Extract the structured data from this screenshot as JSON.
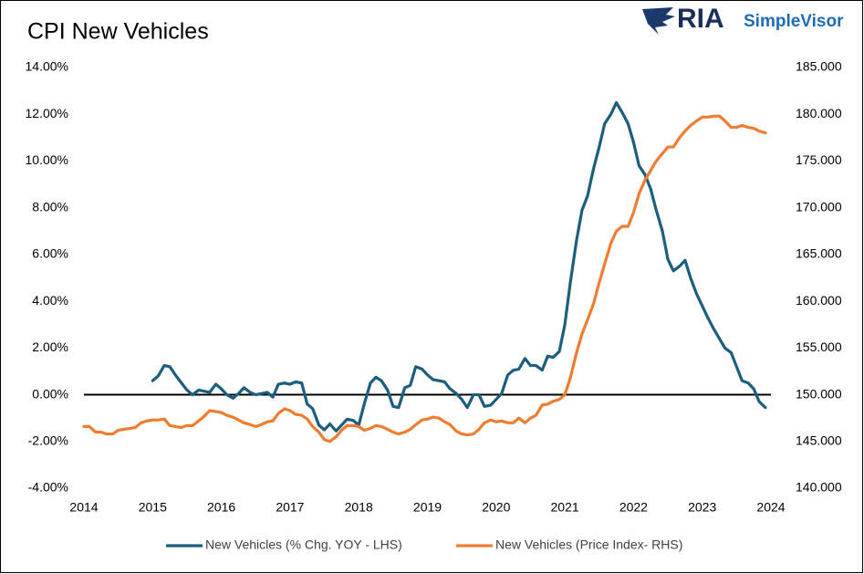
{
  "branding": {
    "name": "RIA",
    "product": "SimpleVisor"
  },
  "chart_data": {
    "type": "line",
    "title": "CPI New Vehicles",
    "xlim": [
      2014,
      2024
    ],
    "xticks": [
      2014,
      2015,
      2016,
      2017,
      2018,
      2019,
      2020,
      2021,
      2022,
      2023,
      2024
    ],
    "ylim": [
      -4,
      14
    ],
    "yticks": [
      {
        "value": -4,
        "label": "-4.00%"
      },
      {
        "value": -2,
        "label": "-2.00%"
      },
      {
        "value": 0,
        "label": "0.00%"
      },
      {
        "value": 2,
        "label": "2.00%"
      },
      {
        "value": 4,
        "label": "4.00%"
      },
      {
        "value": 6,
        "label": "6.00%"
      },
      {
        "value": 8,
        "label": "8.00%"
      },
      {
        "value": 10,
        "label": "10.00%"
      },
      {
        "value": 12,
        "label": "12.00%"
      },
      {
        "value": 14,
        "label": "14.00%"
      }
    ],
    "y2lim": [
      140,
      185
    ],
    "y2ticks": [
      {
        "value": 140,
        "label": "140.000"
      },
      {
        "value": 145,
        "label": "145.000"
      },
      {
        "value": 150,
        "label": "150.000"
      },
      {
        "value": 155,
        "label": "155.000"
      },
      {
        "value": 160,
        "label": "160.000"
      },
      {
        "value": 165,
        "label": "165.000"
      },
      {
        "value": 170,
        "label": "170.000"
      },
      {
        "value": 175,
        "label": "175.000"
      },
      {
        "value": 180,
        "label": "180.000"
      },
      {
        "value": 185,
        "label": "185.000"
      }
    ],
    "zero_line": true,
    "grid": false,
    "legend": "bottom",
    "series": [
      {
        "name": "New Vehicles (% Chg. YOY - LHS)",
        "color": "#1b5e7e",
        "axis": "y",
        "x": [
          2015.0,
          2015.08,
          2015.17,
          2015.25,
          2015.33,
          2015.42,
          2015.5,
          2015.58,
          2015.67,
          2015.75,
          2015.83,
          2015.92,
          2016.0,
          2016.08,
          2016.17,
          2016.25,
          2016.33,
          2016.42,
          2016.5,
          2016.58,
          2016.67,
          2016.75,
          2016.83,
          2016.92,
          2017.0,
          2017.08,
          2017.17,
          2017.25,
          2017.33,
          2017.42,
          2017.5,
          2017.58,
          2017.67,
          2017.75,
          2017.83,
          2017.92,
          2018.0,
          2018.08,
          2018.17,
          2018.25,
          2018.33,
          2018.42,
          2018.5,
          2018.58,
          2018.67,
          2018.75,
          2018.83,
          2018.92,
          2019.0,
          2019.08,
          2019.17,
          2019.25,
          2019.33,
          2019.42,
          2019.5,
          2019.58,
          2019.67,
          2019.75,
          2019.83,
          2019.92,
          2020.0,
          2020.08,
          2020.17,
          2020.25,
          2020.33,
          2020.42,
          2020.5,
          2020.58,
          2020.67,
          2020.75,
          2020.83,
          2020.92,
          2021.0,
          2021.08,
          2021.17,
          2021.25,
          2021.33,
          2021.42,
          2021.5,
          2021.58,
          2021.67,
          2021.75,
          2021.83,
          2021.92,
          2022.0,
          2022.08,
          2022.17,
          2022.25,
          2022.33,
          2022.42,
          2022.5,
          2022.58,
          2022.67,
          2022.75,
          2022.83,
          2022.92,
          2023.0,
          2023.08,
          2023.17,
          2023.25,
          2023.33,
          2023.42,
          2023.5,
          2023.58,
          2023.67,
          2023.75,
          2023.83,
          2023.92
        ],
        "values": [
          0.6,
          0.8,
          1.25,
          1.2,
          0.85,
          0.5,
          0.2,
          0.0,
          0.2,
          0.15,
          0.1,
          0.45,
          0.25,
          0.0,
          -0.15,
          0.05,
          0.3,
          0.1,
          0.0,
          0.05,
          0.1,
          -0.1,
          0.45,
          0.5,
          0.45,
          0.55,
          0.5,
          -0.4,
          -0.6,
          -1.3,
          -1.5,
          -1.25,
          -1.55,
          -1.3,
          -1.05,
          -1.1,
          -1.3,
          -0.4,
          0.5,
          0.75,
          0.6,
          0.2,
          -0.5,
          -0.55,
          0.3,
          0.4,
          1.2,
          1.1,
          0.85,
          0.65,
          0.6,
          0.55,
          0.25,
          0.05,
          -0.2,
          -0.55,
          0.0,
          0.0,
          -0.5,
          -0.45,
          -0.2,
          0.05,
          0.85,
          1.05,
          1.1,
          1.55,
          1.25,
          1.25,
          1.05,
          1.65,
          1.6,
          1.85,
          3.0,
          4.8,
          6.6,
          7.9,
          8.5,
          9.7,
          10.6,
          11.6,
          12.0,
          12.5,
          12.1,
          11.6,
          10.8,
          9.8,
          9.4,
          8.8,
          7.9,
          7.0,
          5.8,
          5.3,
          5.5,
          5.75,
          5.0,
          4.3,
          3.8,
          3.3,
          2.8,
          2.4,
          2.0,
          1.8,
          1.2,
          0.6,
          0.5,
          0.25,
          -0.3,
          -0.55
        ]
      },
      {
        "name": "New Vehicles (Price Index- RHS)",
        "color": "#ed7d31",
        "axis": "y2",
        "x": [
          2014.0,
          2014.08,
          2014.17,
          2014.25,
          2014.33,
          2014.42,
          2014.5,
          2014.58,
          2014.67,
          2014.75,
          2014.83,
          2014.92,
          2015.0,
          2015.08,
          2015.17,
          2015.25,
          2015.33,
          2015.42,
          2015.5,
          2015.58,
          2015.67,
          2015.75,
          2015.83,
          2015.92,
          2016.0,
          2016.08,
          2016.17,
          2016.25,
          2016.33,
          2016.42,
          2016.5,
          2016.58,
          2016.67,
          2016.75,
          2016.83,
          2016.92,
          2017.0,
          2017.08,
          2017.17,
          2017.25,
          2017.33,
          2017.42,
          2017.5,
          2017.58,
          2017.67,
          2017.75,
          2017.83,
          2017.92,
          2018.0,
          2018.08,
          2018.17,
          2018.25,
          2018.33,
          2018.42,
          2018.5,
          2018.58,
          2018.67,
          2018.75,
          2018.83,
          2018.92,
          2019.0,
          2019.08,
          2019.17,
          2019.25,
          2019.33,
          2019.42,
          2019.5,
          2019.58,
          2019.67,
          2019.75,
          2019.83,
          2019.92,
          2020.0,
          2020.08,
          2020.17,
          2020.25,
          2020.33,
          2020.42,
          2020.5,
          2020.58,
          2020.67,
          2020.75,
          2020.83,
          2020.92,
          2021.0,
          2021.08,
          2021.17,
          2021.25,
          2021.33,
          2021.42,
          2021.5,
          2021.58,
          2021.67,
          2021.75,
          2021.83,
          2021.92,
          2022.0,
          2022.08,
          2022.17,
          2022.25,
          2022.33,
          2022.42,
          2022.5,
          2022.58,
          2022.67,
          2022.75,
          2022.83,
          2022.92,
          2023.0,
          2023.08,
          2023.17,
          2023.25,
          2023.33,
          2023.42,
          2023.5,
          2023.58,
          2023.67,
          2023.75,
          2023.83,
          2023.92
        ],
        "values": [
          146.6,
          146.6,
          146.0,
          146.0,
          145.8,
          145.8,
          146.2,
          146.3,
          146.4,
          146.5,
          147.0,
          147.2,
          147.3,
          147.3,
          147.4,
          146.7,
          146.6,
          146.5,
          146.7,
          146.7,
          147.2,
          147.7,
          148.3,
          148.2,
          148.1,
          147.8,
          147.6,
          147.3,
          147.0,
          146.8,
          146.6,
          146.8,
          147.1,
          147.2,
          148.0,
          148.5,
          148.3,
          147.9,
          147.8,
          147.4,
          146.6,
          146.0,
          145.2,
          145.0,
          145.5,
          146.2,
          146.7,
          146.7,
          146.6,
          146.2,
          146.4,
          146.7,
          146.6,
          146.3,
          146.0,
          145.8,
          146.0,
          146.3,
          146.8,
          147.3,
          147.4,
          147.6,
          147.5,
          147.1,
          146.8,
          146.1,
          145.8,
          145.7,
          145.8,
          146.3,
          147.0,
          147.3,
          147.1,
          147.2,
          147.0,
          147.0,
          147.5,
          147.0,
          147.5,
          147.8,
          148.9,
          149.0,
          149.3,
          149.5,
          150.0,
          151.8,
          154.5,
          156.5,
          158.0,
          159.8,
          162.0,
          164.0,
          166.2,
          167.5,
          168.0,
          168.0,
          169.5,
          171.5,
          173.0,
          174.0,
          175.0,
          175.8,
          176.5,
          176.5,
          177.5,
          178.2,
          178.8,
          179.3,
          179.7,
          179.7,
          179.8,
          179.8,
          179.3,
          178.6,
          178.6,
          178.8,
          178.6,
          178.5,
          178.2,
          178.0
        ]
      }
    ]
  }
}
